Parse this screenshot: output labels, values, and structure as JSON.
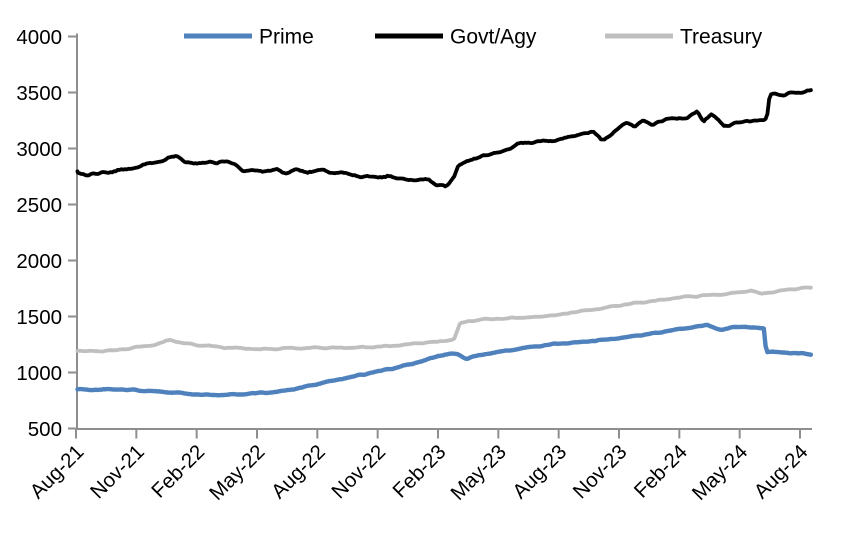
{
  "chart_data": {
    "type": "line",
    "title": "",
    "xlabel": "",
    "ylabel": "",
    "grid": false,
    "background": "#ffffff",
    "axis_color": "#8e8e8e",
    "legend_position": "top",
    "ylim": [
      500,
      4000
    ],
    "yticks": [
      4000,
      3500,
      3000,
      2500,
      2000,
      1500,
      1000,
      500
    ],
    "xtick_labels": [
      "Aug-21",
      "Nov-21",
      "Feb-22",
      "May-22",
      "Aug-22",
      "Nov-22",
      "Feb-23",
      "May-23",
      "Aug-23",
      "Nov-23",
      "Feb-24",
      "May-24",
      "Aug-24"
    ],
    "x_unit": "months since Aug-21",
    "x_range": [
      0,
      36.6
    ],
    "series": [
      {
        "name": "Prime",
        "color": "#4F81BD",
        "points": [
          [
            0,
            850
          ],
          [
            1,
            845
          ],
          [
            2,
            850
          ],
          [
            3,
            842
          ],
          [
            4,
            832
          ],
          [
            5,
            818
          ],
          [
            6,
            803
          ],
          [
            7,
            797
          ],
          [
            8,
            806
          ],
          [
            9,
            815
          ],
          [
            10,
            826
          ],
          [
            10.6,
            848
          ],
          [
            11,
            858
          ],
          [
            12,
            898
          ],
          [
            13,
            936
          ],
          [
            14,
            974
          ],
          [
            15,
            1008
          ],
          [
            16,
            1046
          ],
          [
            17,
            1090
          ],
          [
            18,
            1145
          ],
          [
            18.6,
            1170
          ],
          [
            19,
            1158
          ],
          [
            19.4,
            1126
          ],
          [
            20,
            1150
          ],
          [
            21,
            1185
          ],
          [
            22,
            1212
          ],
          [
            23,
            1236
          ],
          [
            24,
            1256
          ],
          [
            25,
            1270
          ],
          [
            26,
            1288
          ],
          [
            27,
            1306
          ],
          [
            28,
            1330
          ],
          [
            29,
            1358
          ],
          [
            30,
            1386
          ],
          [
            31,
            1412
          ],
          [
            31.4,
            1422
          ],
          [
            32.1,
            1378
          ],
          [
            32.8,
            1412
          ],
          [
            33.5,
            1400
          ],
          [
            34.2,
            1398
          ],
          [
            34.32,
            1188
          ],
          [
            35,
            1182
          ],
          [
            35.8,
            1172
          ],
          [
            36.6,
            1165
          ]
        ]
      },
      {
        "name": "Govt/Agy",
        "color": "#000000",
        "points": [
          [
            0,
            2780
          ],
          [
            0.5,
            2762
          ],
          [
            1,
            2772
          ],
          [
            2,
            2800
          ],
          [
            3,
            2832
          ],
          [
            4,
            2878
          ],
          [
            5,
            2930
          ],
          [
            5.4,
            2885
          ],
          [
            6,
            2862
          ],
          [
            6.6,
            2888
          ],
          [
            7,
            2868
          ],
          [
            7.6,
            2886
          ],
          [
            8,
            2852
          ],
          [
            8.3,
            2792
          ],
          [
            9,
            2808
          ],
          [
            9.6,
            2788
          ],
          [
            10,
            2812
          ],
          [
            10.5,
            2780
          ],
          [
            11,
            2812
          ],
          [
            11.5,
            2788
          ],
          [
            12,
            2800
          ],
          [
            13,
            2782
          ],
          [
            14,
            2760
          ],
          [
            15,
            2742
          ],
          [
            15.5,
            2758
          ],
          [
            16,
            2732
          ],
          [
            17,
            2712
          ],
          [
            17.5,
            2728
          ],
          [
            18,
            2672
          ],
          [
            18.4,
            2656
          ],
          [
            18.8,
            2748
          ],
          [
            19,
            2852
          ],
          [
            19.6,
            2888
          ],
          [
            20,
            2922
          ],
          [
            20.5,
            2950
          ],
          [
            21,
            2962
          ],
          [
            21.5,
            3005
          ],
          [
            22,
            3042
          ],
          [
            22.5,
            3052
          ],
          [
            23,
            3068
          ],
          [
            23.5,
            3062
          ],
          [
            24,
            3088
          ],
          [
            24.5,
            3096
          ],
          [
            25,
            3128
          ],
          [
            25.7,
            3152
          ],
          [
            26.1,
            3082
          ],
          [
            26.6,
            3120
          ],
          [
            27,
            3188
          ],
          [
            27.4,
            3242
          ],
          [
            27.8,
            3198
          ],
          [
            28.2,
            3252
          ],
          [
            28.6,
            3222
          ],
          [
            29,
            3242
          ],
          [
            29.5,
            3262
          ],
          [
            30,
            3278
          ],
          [
            30.4,
            3262
          ],
          [
            30.9,
            3330
          ],
          [
            31.2,
            3248
          ],
          [
            31.6,
            3308
          ],
          [
            32.2,
            3198
          ],
          [
            32.6,
            3222
          ],
          [
            33,
            3232
          ],
          [
            33.6,
            3248
          ],
          [
            34.35,
            3262
          ],
          [
            34.5,
            3478
          ],
          [
            34.8,
            3492
          ],
          [
            35.2,
            3472
          ],
          [
            35.7,
            3498
          ],
          [
            36.2,
            3512
          ],
          [
            36.6,
            3528
          ]
        ]
      },
      {
        "name": "Treasury",
        "color": "#BFBFBF",
        "points": [
          [
            0,
            1196
          ],
          [
            1,
            1188
          ],
          [
            2,
            1200
          ],
          [
            3,
            1222
          ],
          [
            4,
            1250
          ],
          [
            4.7,
            1292
          ],
          [
            5.4,
            1262
          ],
          [
            6,
            1246
          ],
          [
            7,
            1230
          ],
          [
            8,
            1218
          ],
          [
            9,
            1208
          ],
          [
            10,
            1212
          ],
          [
            11,
            1218
          ],
          [
            12,
            1220
          ],
          [
            13,
            1222
          ],
          [
            14,
            1223
          ],
          [
            15,
            1230
          ],
          [
            16,
            1242
          ],
          [
            17,
            1258
          ],
          [
            18,
            1275
          ],
          [
            18.8,
            1295
          ],
          [
            19.1,
            1438
          ],
          [
            19.6,
            1462
          ],
          [
            20,
            1470
          ],
          [
            21,
            1480
          ],
          [
            22,
            1487
          ],
          [
            23,
            1497
          ],
          [
            24,
            1518
          ],
          [
            25,
            1545
          ],
          [
            26,
            1568
          ],
          [
            27,
            1598
          ],
          [
            28,
            1622
          ],
          [
            29,
            1645
          ],
          [
            30,
            1668
          ],
          [
            31,
            1686
          ],
          [
            31.8,
            1692
          ],
          [
            32.3,
            1702
          ],
          [
            33,
            1718
          ],
          [
            33.6,
            1730
          ],
          [
            34.1,
            1702
          ],
          [
            34.8,
            1724
          ],
          [
            35.5,
            1742
          ],
          [
            36,
            1750
          ],
          [
            36.6,
            1758
          ]
        ]
      }
    ]
  }
}
